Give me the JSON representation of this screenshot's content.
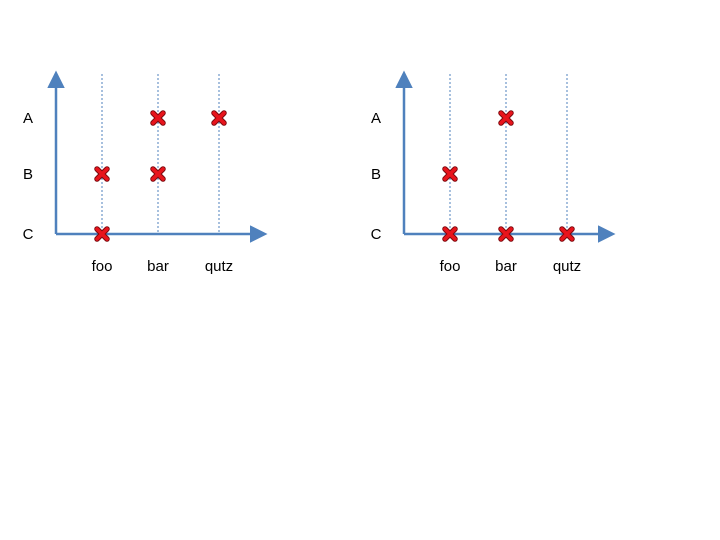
{
  "chart_data": [
    {
      "type": "scatter",
      "categories_x": [
        "foo",
        "bar",
        "qutz"
      ],
      "categories_y": [
        "C",
        "B",
        "A"
      ],
      "points": [
        {
          "x": "foo",
          "y": "C"
        },
        {
          "x": "foo",
          "y": "B"
        },
        {
          "x": "bar",
          "y": "B"
        },
        {
          "x": "bar",
          "y": "A"
        },
        {
          "x": "qutz",
          "y": "A"
        }
      ],
      "title": "",
      "xlabel": "",
      "ylabel": "",
      "grid": "vertical-dashed",
      "legend": "none"
    },
    {
      "type": "scatter",
      "categories_x": [
        "foo",
        "bar",
        "qutz"
      ],
      "categories_y": [
        "C",
        "B",
        "A"
      ],
      "points": [
        {
          "x": "foo",
          "y": "C"
        },
        {
          "x": "foo",
          "y": "B"
        },
        {
          "x": "bar",
          "y": "C"
        },
        {
          "x": "bar",
          "y": "A"
        },
        {
          "x": "qutz",
          "y": "C"
        }
      ],
      "title": "",
      "xlabel": "",
      "ylabel": "",
      "grid": "vertical-dashed",
      "legend": "none"
    }
  ],
  "colors": {
    "axis": "#4f81bd",
    "gridline": "#4f81bd",
    "marker": "#e8141c",
    "marker_outline": "#7a0a0e"
  },
  "marker_icon": "red-cross-icon"
}
